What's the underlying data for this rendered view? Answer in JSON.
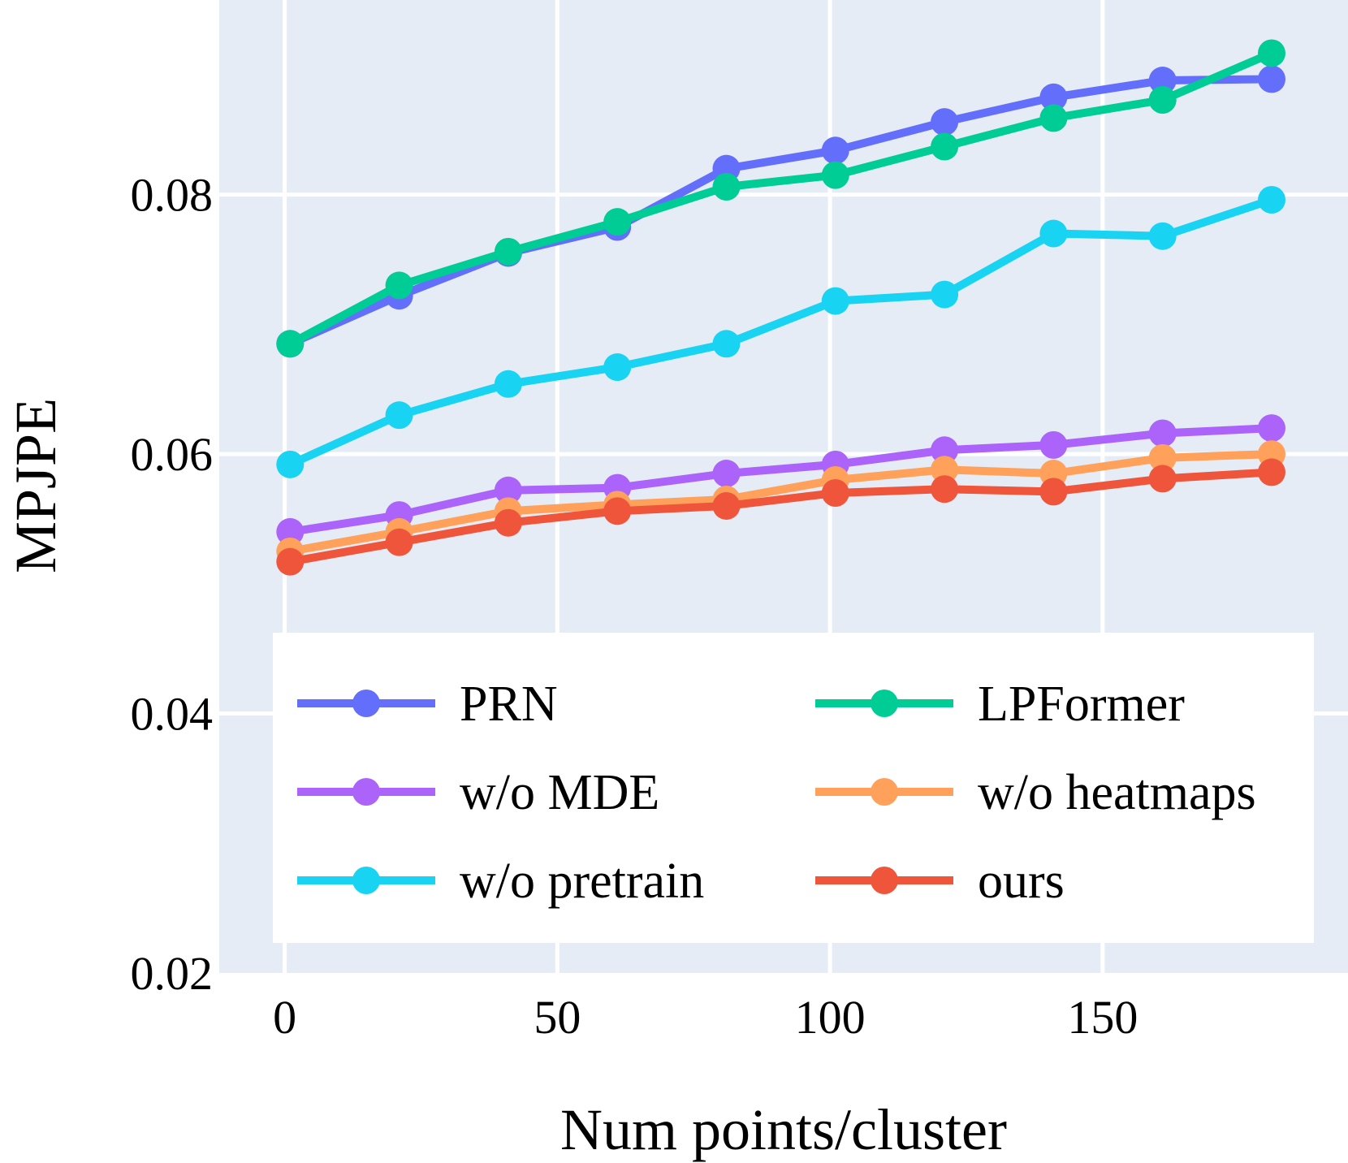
{
  "chart_data": {
    "type": "line",
    "title": "",
    "xlabel": "Num points/cluster",
    "ylabel": "MPJPE",
    "x": [
      1,
      21,
      41,
      61,
      81,
      101,
      121,
      141,
      161,
      181
    ],
    "xlim": [
      -12,
      195
    ],
    "ylim": [
      0.02,
      0.095
    ],
    "xticks": [
      0,
      50,
      100,
      150
    ],
    "xtick_labels": [
      "0",
      "50",
      "100",
      "150"
    ],
    "yticks": [
      0.02,
      0.04,
      0.06,
      0.08
    ],
    "ytick_labels": [
      "0.02",
      "0.04",
      "0.06",
      "0.08"
    ],
    "grid": true,
    "legend_position": "bottom-center",
    "colors": {
      "plot_bg": "#e5ecf6",
      "grid": "#ffffff",
      "legend_bg": "#ffffff"
    },
    "series": [
      {
        "name": "PRN",
        "color": "#636efa",
        "values": [
          0.0685,
          0.0722,
          0.0755,
          0.0775,
          0.082,
          0.0834,
          0.0856,
          0.0875,
          0.0888,
          0.0889
        ]
      },
      {
        "name": "LPFormer",
        "color": "#00cc96",
        "values": [
          0.0685,
          0.073,
          0.0756,
          0.0779,
          0.0806,
          0.0815,
          0.0837,
          0.0859,
          0.0873,
          0.0909
        ]
      },
      {
        "name": "w/o MDE",
        "color": "#ab63fa",
        "values": [
          0.054,
          0.0553,
          0.0572,
          0.0574,
          0.0585,
          0.0592,
          0.0603,
          0.0607,
          0.0616,
          0.062
        ]
      },
      {
        "name": "w/o heatmaps",
        "color": "#ffa15a",
        "values": [
          0.0525,
          0.054,
          0.0556,
          0.0561,
          0.0565,
          0.058,
          0.0588,
          0.0585,
          0.0597,
          0.06
        ]
      },
      {
        "name": "w/o pretrain",
        "color": "#19d3f3",
        "values": [
          0.0592,
          0.063,
          0.0654,
          0.0667,
          0.0685,
          0.0718,
          0.0723,
          0.077,
          0.0768,
          0.0796
        ]
      },
      {
        "name": "ours",
        "color": "#ef553b",
        "values": [
          0.0517,
          0.0532,
          0.0547,
          0.0556,
          0.056,
          0.057,
          0.0573,
          0.0571,
          0.0581,
          0.0586
        ]
      }
    ]
  }
}
